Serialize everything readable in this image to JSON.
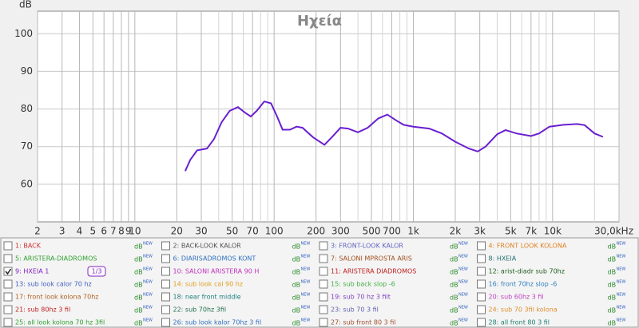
{
  "chart_data": {
    "type": "line",
    "title": "Ηχεία",
    "y_label": "dB",
    "xscale": "log",
    "grid": true,
    "xlim": [
      2,
      30000
    ],
    "ylim": [
      50,
      106
    ],
    "xticks": [
      2,
      3,
      4,
      5,
      6,
      7,
      8,
      9,
      10,
      20,
      30,
      50,
      70,
      100,
      200,
      300,
      500,
      700,
      {
        "value": 1000,
        "label": "1k"
      },
      {
        "value": 2000,
        "label": "2k"
      },
      {
        "value": 3000,
        "label": "3k"
      },
      {
        "value": 5000,
        "label": "5k"
      },
      {
        "value": 7000,
        "label": "7k"
      },
      {
        "value": 10000,
        "label": "10k"
      },
      {
        "value": 30000,
        "label": "30,0kHz"
      }
    ],
    "minor_xticks": [
      40,
      60,
      80,
      90,
      400,
      600,
      800,
      900,
      4000,
      6000,
      8000,
      9000,
      20000
    ],
    "yticks": [
      60,
      70,
      80,
      90,
      100
    ],
    "x": [
      23,
      25,
      28,
      33,
      37,
      42,
      48,
      55,
      62,
      68,
      75,
      85,
      95,
      105,
      115,
      130,
      145,
      160,
      190,
      230,
      260,
      300,
      340,
      400,
      470,
      560,
      650,
      750,
      850,
      1000,
      1300,
      1600,
      2000,
      2500,
      2900,
      3300,
      4000,
      4600,
      5500,
      7000,
      8000,
      9500,
      12000,
      15000,
      17000,
      20000,
      23000
    ],
    "series": [
      {
        "color": "#6a1fd0",
        "values": [
          63.5,
          66.5,
          69,
          69.5,
          72,
          76.5,
          79.5,
          80.5,
          79,
          78,
          79.5,
          82,
          81.5,
          78,
          74.5,
          74.5,
          75.3,
          75,
          72.5,
          70.5,
          72.5,
          75,
          74.8,
          73.8,
          75,
          77.5,
          78.5,
          77,
          75.8,
          75.3,
          74.8,
          73.5,
          71.3,
          69.5,
          68.7,
          70,
          73.3,
          74.4,
          73.5,
          72.8,
          73.5,
          75.3,
          75.8,
          76,
          75.7,
          73.5,
          72.6
        ]
      }
    ]
  },
  "legend": {
    "unit": "dB",
    "unit_sup": "NEW",
    "entries": [
      {
        "label": "1: BACK",
        "color": "#d03030",
        "checked": false
      },
      {
        "label": "2: BACK-LOOK KALOR",
        "color": "#505050",
        "checked": false
      },
      {
        "label": "3: FRONT-LOOK KALOR",
        "color": "#6060c0",
        "checked": false
      },
      {
        "label": "4: FRONT LOOK KOLONA",
        "color": "#e08020",
        "checked": false
      },
      {
        "label": "5: ARISTERA-DIADROMOS",
        "color": "#30a030",
        "checked": false
      },
      {
        "label": "6: DIARISADROMOS KONT",
        "color": "#3070c0",
        "checked": false
      },
      {
        "label": "7: SALONI MPROSTA ARIS",
        "color": "#a05020",
        "checked": false
      },
      {
        "label": "8: HXEIA",
        "color": "#207070",
        "checked": false
      },
      {
        "label": "9: HXEIA 1",
        "color": "#8020c0",
        "checked": true,
        "smoothing": "1/3"
      },
      {
        "label": "10: SALONI ARISTERA 90 H",
        "color": "#c030c0",
        "checked": false
      },
      {
        "label": "11: ARISTERA DIADROMOS",
        "color": "#c02020",
        "checked": false
      },
      {
        "label": "12: arist-diadr sub 70hz",
        "color": "#206020",
        "checked": false
      },
      {
        "label": "13: sub look calor 70 hz",
        "color": "#4060c0",
        "checked": false
      },
      {
        "label": "14: sub look cal 90 hz",
        "color": "#e0a020",
        "checked": false
      },
      {
        "label": "15: sub back slop -6",
        "color": "#40b040",
        "checked": false
      },
      {
        "label": "16: front 70hz slop -6",
        "color": "#3080c0",
        "checked": false
      },
      {
        "label": "17: front look kolona 70hz",
        "color": "#b06020",
        "checked": false
      },
      {
        "label": "18: near front middle",
        "color": "#208080",
        "checked": false
      },
      {
        "label": "19: sub 70 hz 3 filt",
        "color": "#8040c0",
        "checked": false
      },
      {
        "label": "20: sub 60hz 3 fil",
        "color": "#c040c0",
        "checked": false
      },
      {
        "label": "21: sub 80hz 3 fil",
        "color": "#c02020",
        "checked": false
      },
      {
        "label": "22: sub 70hz 3fil",
        "color": "#207050",
        "checked": false
      },
      {
        "label": "23: sub 70 3 fil",
        "color": "#6060b0",
        "checked": false
      },
      {
        "label": "24: sub 70 3fil kolona",
        "color": "#e09030",
        "checked": false
      },
      {
        "label": "25: all look kolona 70 hz 3fil",
        "color": "#30a030",
        "checked": false
      },
      {
        "label": "26: sub look kalor 70hz 3 fil",
        "color": "#3070c0",
        "checked": false
      },
      {
        "label": "27: sub front 80 3 fil",
        "color": "#a05030",
        "checked": false
      },
      {
        "label": "28: all front 80 3 fil",
        "color": "#208070",
        "checked": false
      }
    ]
  }
}
